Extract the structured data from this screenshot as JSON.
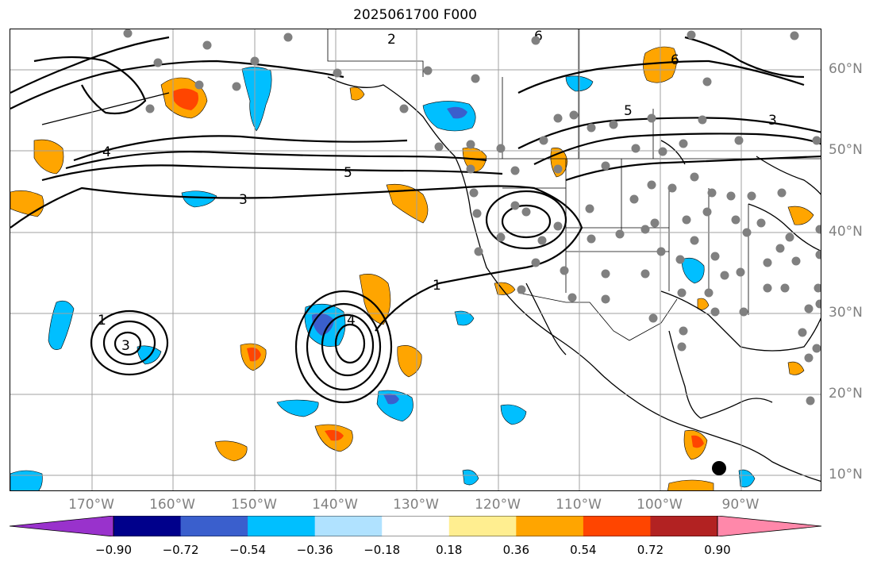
{
  "title": "2025061700 F000",
  "lon_labels": [
    "170°W",
    "160°W",
    "150°W",
    "140°W",
    "130°W",
    "120°W",
    "110°W",
    "100°W",
    "90°W"
  ],
  "lat_labels": [
    "60°N",
    "50°N",
    "40°N",
    "30°N",
    "20°N",
    "10°N"
  ],
  "colorbar": {
    "ticks": [
      "−0.90",
      "−0.72",
      "−0.54",
      "−0.36",
      "−0.18",
      "0.18",
      "0.36",
      "0.54",
      "0.72",
      "0.90"
    ],
    "colors": [
      "#9932cc",
      "#00008b",
      "#3a5fcd",
      "#00bfff",
      "#b0e2ff",
      "#ffffff",
      "#ffee90",
      "#ffa500",
      "#ff4500",
      "#b22222",
      "#ff88aa"
    ]
  },
  "contour_labels": [
    "1",
    "2",
    "3",
    "4",
    "5",
    "6"
  ],
  "colors": {
    "grid": "#a0a0a0",
    "contour": "#000000",
    "station_dot": "#808080",
    "marker": "#000000"
  }
}
